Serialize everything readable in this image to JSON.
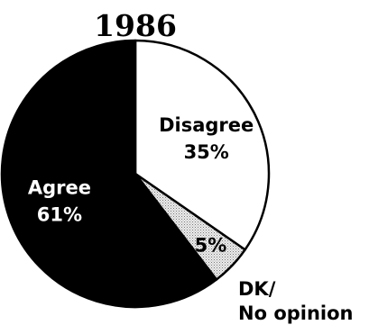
{
  "chart_data": {
    "type": "pie",
    "title": "1986",
    "slices": [
      {
        "label": "Disagree",
        "value": 35,
        "value_label": "35%",
        "color": "#ffffff",
        "label_color": "#000000"
      },
      {
        "label": "DK/ No opinion",
        "label_lines": [
          "DK/",
          "No opinion"
        ],
        "value": 5,
        "value_label": "5%",
        "color": "#d8d8d8",
        "label_color": "#000000"
      },
      {
        "label": "Agree",
        "value": 61,
        "value_label": "61%",
        "color": "#000000",
        "label_color": "#ffffff"
      }
    ],
    "start_angle_deg": 0,
    "direction": "clockwise",
    "legend": "none"
  }
}
